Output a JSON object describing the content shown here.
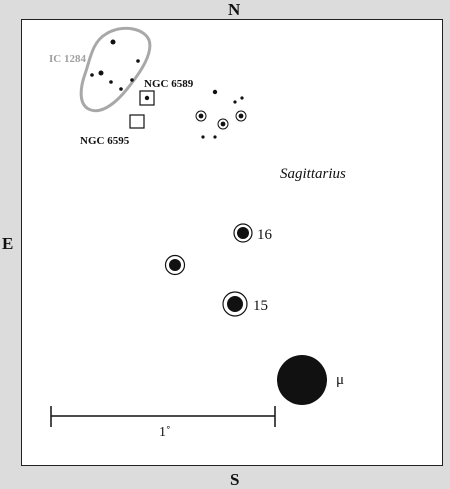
{
  "compass": {
    "north": "N",
    "south": "S",
    "east": "E"
  },
  "labels": {
    "ic1284": "IC 1284",
    "ngc6589": "NGC 6589",
    "ngc6595": "NGC 6595",
    "constellation": "Sagittarius",
    "star16": "16",
    "star15": "15",
    "mu": "μ",
    "scale": "1˚"
  },
  "colors": {
    "background": "#dcdcdc",
    "chart": "#ffffff",
    "ink": "#111111",
    "nebula_outline": "#a8a8a8",
    "nebula_label": "#a0a0a0"
  }
}
